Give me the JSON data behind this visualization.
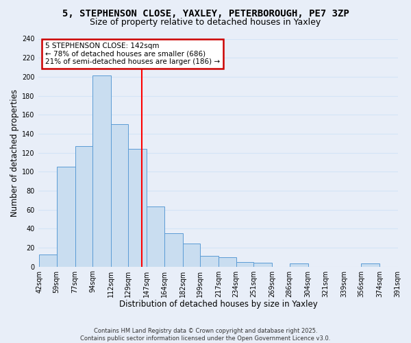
{
  "title_line1": "5, STEPHENSON CLOSE, YAXLEY, PETERBOROUGH, PE7 3ZP",
  "title_line2": "Size of property relative to detached houses in Yaxley",
  "xlabel": "Distribution of detached houses by size in Yaxley",
  "ylabel": "Number of detached properties",
  "bar_left_edges": [
    42,
    59,
    77,
    94,
    112,
    129,
    147,
    164,
    182,
    199,
    217,
    234,
    251,
    269,
    286,
    304,
    321,
    339,
    356,
    374
  ],
  "bar_widths": [
    17,
    18,
    17,
    18,
    17,
    18,
    17,
    18,
    17,
    18,
    17,
    17,
    18,
    17,
    18,
    17,
    18,
    17,
    18,
    17
  ],
  "bar_heights": [
    13,
    105,
    127,
    201,
    150,
    124,
    63,
    35,
    24,
    11,
    10,
    5,
    4,
    0,
    3,
    0,
    0,
    0,
    3,
    0
  ],
  "last_bar_edge": 391,
  "bar_color": "#c9ddf0",
  "bar_edgecolor": "#5b9bd5",
  "grid_color": "#d4e4f7",
  "vline_x": 142,
  "vline_color": "red",
  "annotation_text": "5 STEPHENSON CLOSE: 142sqm\n← 78% of detached houses are smaller (686)\n21% of semi-detached houses are larger (186) →",
  "annotation_box_facecolor": "white",
  "annotation_box_edgecolor": "#cc0000",
  "ylim": [
    0,
    240
  ],
  "yticks": [
    0,
    20,
    40,
    60,
    80,
    100,
    120,
    140,
    160,
    180,
    200,
    220,
    240
  ],
  "xtick_labels": [
    "42sqm",
    "59sqm",
    "77sqm",
    "94sqm",
    "112sqm",
    "129sqm",
    "147sqm",
    "164sqm",
    "182sqm",
    "199sqm",
    "217sqm",
    "234sqm",
    "251sqm",
    "269sqm",
    "286sqm",
    "304sqm",
    "321sqm",
    "339sqm",
    "356sqm",
    "374sqm",
    "391sqm"
  ],
  "xtick_positions": [
    42,
    59,
    77,
    94,
    112,
    129,
    147,
    164,
    182,
    199,
    217,
    234,
    251,
    269,
    286,
    304,
    321,
    339,
    356,
    374,
    391
  ],
  "footnote": "Contains HM Land Registry data © Crown copyright and database right 2025.\nContains public sector information licensed under the Open Government Licence v3.0.",
  "bg_color": "#e8eef8",
  "plot_bg_color": "#e8eef8",
  "title_fontsize": 10,
  "subtitle_fontsize": 9,
  "axis_label_fontsize": 8.5,
  "tick_fontsize": 7,
  "footnote_fontsize": 6,
  "annotation_fontsize": 7.5
}
